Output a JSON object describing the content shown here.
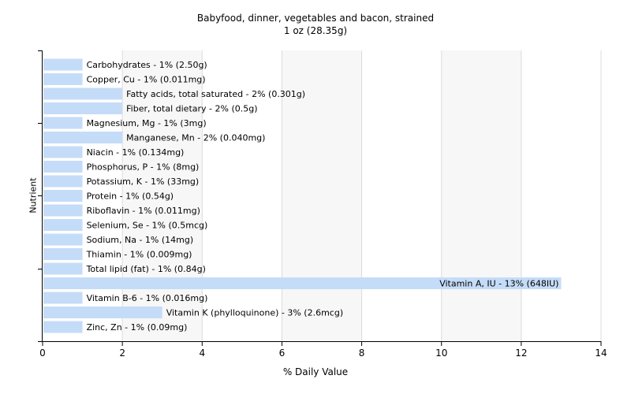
{
  "chart_data": {
    "type": "bar",
    "orientation": "horizontal",
    "title": "Babyfood, dinner, vegetables and bacon, strained",
    "subtitle": "1 oz (28.35g)",
    "xlabel": "% Daily Value",
    "ylabel": "Nutrient",
    "xlim": [
      0,
      14
    ],
    "xticks": [
      0,
      2,
      4,
      6,
      8,
      10,
      12,
      14
    ],
    "grid": "vertical",
    "bar_color": "#c5dcf8",
    "background_band_color": "#f7f7f7",
    "categories": [
      "Carbohydrates",
      "Copper, Cu",
      "Fatty acids, total saturated",
      "Fiber, total dietary",
      "Magnesium, Mg",
      "Manganese, Mn",
      "Niacin",
      "Phosphorus, P",
      "Potassium, K",
      "Protein",
      "Riboflavin",
      "Selenium, Se",
      "Sodium, Na",
      "Thiamin",
      "Total lipid (fat)",
      "Vitamin A, IU",
      "Vitamin B-6",
      "Vitamin K (phylloquinone)",
      "Zinc, Zn"
    ],
    "values": [
      1,
      1,
      2,
      2,
      1,
      2,
      1,
      1,
      1,
      1,
      1,
      1,
      1,
      1,
      1,
      13,
      1,
      3,
      1
    ],
    "labels": [
      "Carbohydrates - 1% (2.50g)",
      "Copper, Cu - 1% (0.011mg)",
      "Fatty acids, total saturated - 2% (0.301g)",
      "Fiber, total dietary - 2% (0.5g)",
      "Magnesium, Mg - 1% (3mg)",
      "Manganese, Mn - 2% (0.040mg)",
      "Niacin - 1% (0.134mg)",
      "Phosphorus, P - 1% (8mg)",
      "Potassium, K - 1% (33mg)",
      "Protein - 1% (0.54g)",
      "Riboflavin - 1% (0.011mg)",
      "Selenium, Se - 1% (0.5mcg)",
      "Sodium, Na - 1% (14mg)",
      "Thiamin - 1% (0.009mg)",
      "Total lipid (fat) - 1% (0.84g)",
      "Vitamin A, IU - 13% (648IU)",
      "Vitamin B-6 - 1% (0.016mg)",
      "Vitamin K (phylloquinone) - 3% (2.6mcg)",
      "Zinc, Zn - 1% (0.09mg)"
    ]
  }
}
